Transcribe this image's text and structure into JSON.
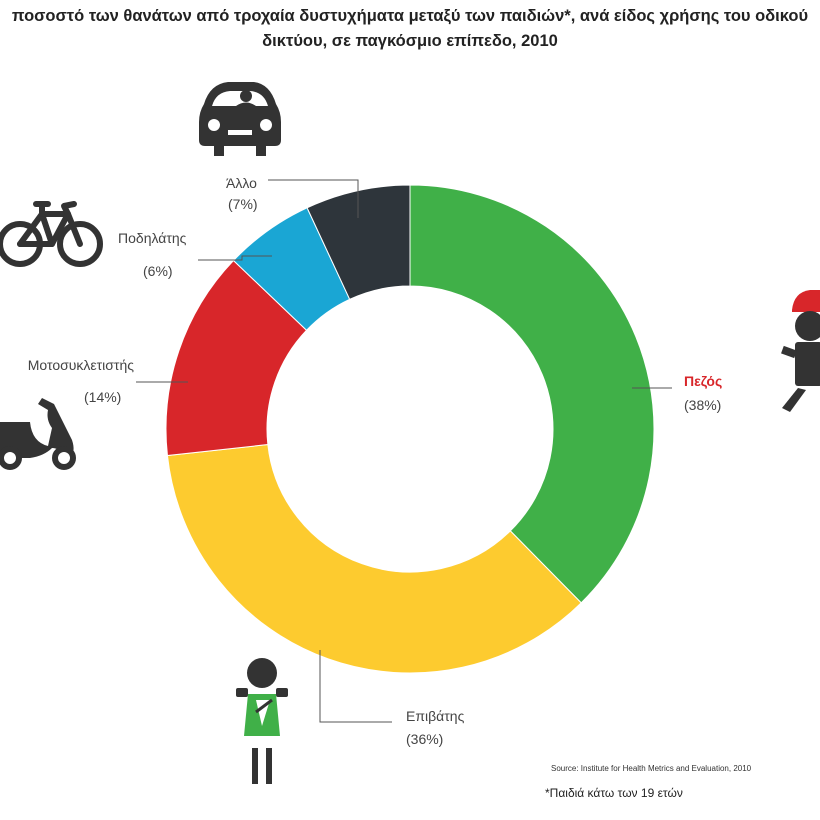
{
  "title": {
    "line1": "ποσοστό των θανάτων από τροχαία δυστυχήματα μεταξύ των παιδιών*, ανά είδος χρήσης του οδικού",
    "line2": "δικτύου, σε παγκόσμιο επίπεδο, 2010"
  },
  "source": "Source: Institute for Health Metrics and Evaluation, 2010",
  "footnote": "*Παιδιά κάτω των 19 ετών",
  "colors": {
    "pedestrian": "#40b048",
    "passenger": "#fdcb2f",
    "motorcyclist": "#d8262a",
    "cyclist": "#1aa6d4",
    "other": "#2e353b",
    "highlight_label": "#d8262a",
    "icon": "#333333"
  },
  "icons": [
    "car-icon",
    "bicycle-icon",
    "scooter-icon",
    "pedestrian-child-icon",
    "passenger-child-icon"
  ],
  "chart_data": {
    "type": "pie",
    "donut": true,
    "start": "top",
    "direction": "clockwise",
    "categories": [
      "Πεζός",
      "Επιβάτης",
      "Μοτοσυκλετιστής",
      "Ποδηλάτης",
      "Άλλο"
    ],
    "values": [
      38,
      36,
      14,
      6,
      7
    ],
    "value_labels": [
      "(38%)",
      "(36%)",
      "(14%)",
      "(6%)",
      "(7%)"
    ],
    "colors": [
      "#40b048",
      "#fdcb2f",
      "#d8262a",
      "#1aa6d4",
      "#2e353b"
    ]
  }
}
